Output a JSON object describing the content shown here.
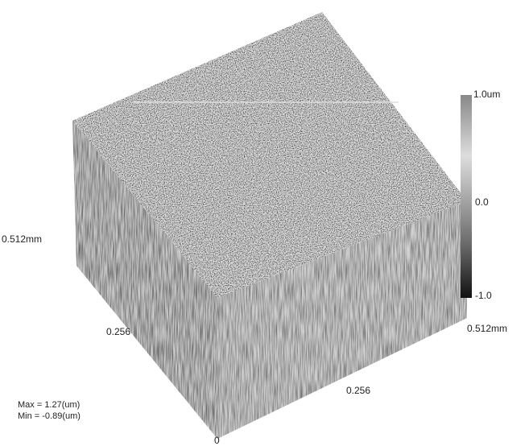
{
  "colorbar": {
    "labels": [
      "1.0um",
      "0.0",
      "-1.0"
    ]
  },
  "axes": {
    "left_end": "0.512mm",
    "left_mid": "0.256",
    "right_end": "0.512mm",
    "right_mid": "0.256",
    "origin": "0"
  },
  "stats": {
    "max": "Max =  1.27(um)",
    "min": "Min = -0.89(um)"
  }
}
